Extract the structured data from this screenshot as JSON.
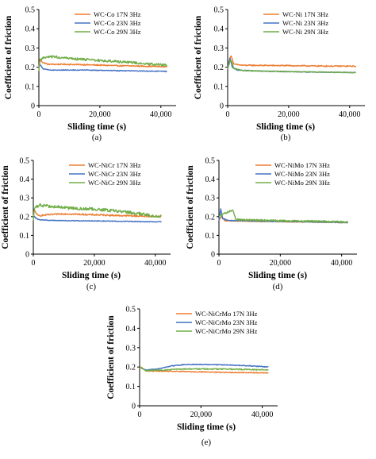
{
  "chart_data": [
    {
      "type": "line",
      "panel_label": "(a)",
      "xlabel": "Sliding time (s)",
      "ylabel": "Coefficient of friction",
      "xlim": [
        0,
        45000
      ],
      "ylim": [
        0,
        0.5
      ],
      "x_ticks": [
        0,
        20000,
        40000
      ],
      "x_tick_labels": [
        "0",
        "20,000",
        "40,000"
      ],
      "y_ticks": [
        0,
        0.1,
        0.2,
        0.3,
        0.4,
        0.5
      ],
      "y_tick_labels": [
        "0",
        "0.1",
        "0.2",
        "0.3",
        "0.4",
        "0.5"
      ],
      "legend_position": "top-right",
      "series": [
        {
          "name": "WC-Co 17N 3Hz",
          "color": "#ed7d31",
          "noise": 0.003,
          "points": [
            [
              0,
              0.19
            ],
            [
              300,
              0.24
            ],
            [
              1200,
              0.225
            ],
            [
              3000,
              0.215
            ],
            [
              8000,
              0.215
            ],
            [
              15000,
              0.213
            ],
            [
              25000,
              0.208
            ],
            [
              35000,
              0.205
            ],
            [
              42000,
              0.203
            ]
          ]
        },
        {
          "name": "WC-Co 23N 3Hz",
          "color": "#4472c4",
          "noise": 0.002,
          "points": [
            [
              0,
              0.2
            ],
            [
              300,
              0.215
            ],
            [
              1500,
              0.19
            ],
            [
              4000,
              0.185
            ],
            [
              15000,
              0.185
            ],
            [
              25000,
              0.182
            ],
            [
              35000,
              0.18
            ],
            [
              42000,
              0.178
            ]
          ]
        },
        {
          "name": "WC-Co 29N 3Hz",
          "color": "#70ad47",
          "noise": 0.006,
          "points": [
            [
              0,
              0.18
            ],
            [
              400,
              0.24
            ],
            [
              2000,
              0.25
            ],
            [
              5000,
              0.255
            ],
            [
              10000,
              0.245
            ],
            [
              20000,
              0.235
            ],
            [
              30000,
              0.225
            ],
            [
              38000,
              0.215
            ],
            [
              42000,
              0.21
            ]
          ]
        }
      ]
    },
    {
      "type": "line",
      "panel_label": "(b)",
      "xlabel": "Sliding time (s)",
      "ylabel": "Coefficient of friction",
      "xlim": [
        0,
        45000
      ],
      "ylim": [
        0,
        0.5
      ],
      "x_ticks": [
        0,
        20000,
        40000
      ],
      "x_tick_labels": [
        "0",
        "20,000",
        "40,000"
      ],
      "y_ticks": [
        0,
        0.1,
        0.2,
        0.3,
        0.4,
        0.5
      ],
      "y_tick_labels": [
        "0",
        "0.1",
        "0.2",
        "0.3",
        "0.4",
        "0.5"
      ],
      "legend_position": "top-right",
      "series": [
        {
          "name": "WC-Ni 17N 3Hz",
          "color": "#ed7d31",
          "noise": 0.003,
          "points": [
            [
              0,
              0.19
            ],
            [
              500,
              0.24
            ],
            [
              1200,
              0.26
            ],
            [
              2000,
              0.215
            ],
            [
              5000,
              0.21
            ],
            [
              20000,
              0.208
            ],
            [
              30000,
              0.206
            ],
            [
              42000,
              0.205
            ]
          ]
        },
        {
          "name": "WC-Ni 23N 3Hz",
          "color": "#4472c4",
          "noise": 0.002,
          "points": [
            [
              0,
              0.19
            ],
            [
              800,
              0.25
            ],
            [
              1500,
              0.2
            ],
            [
              3000,
              0.185
            ],
            [
              10000,
              0.18
            ],
            [
              25000,
              0.175
            ],
            [
              42000,
              0.172
            ]
          ]
        },
        {
          "name": "WC-Ni 29N 3Hz",
          "color": "#70ad47",
          "noise": 0.002,
          "points": [
            [
              0,
              0.19
            ],
            [
              1000,
              0.24
            ],
            [
              2000,
              0.195
            ],
            [
              5000,
              0.182
            ],
            [
              15000,
              0.178
            ],
            [
              30000,
              0.175
            ],
            [
              42000,
              0.172
            ]
          ]
        }
      ]
    },
    {
      "type": "line",
      "panel_label": "(c)",
      "xlabel": "Sliding time (s)",
      "ylabel": "Coefficient of friction",
      "xlim": [
        0,
        45000
      ],
      "ylim": [
        0,
        0.5
      ],
      "x_ticks": [
        0,
        20000,
        40000
      ],
      "x_tick_labels": [
        "0",
        "20,000",
        "40,000"
      ],
      "y_ticks": [
        0,
        0.1,
        0.2,
        0.3,
        0.4,
        0.5
      ],
      "y_tick_labels": [
        "0",
        "0.1",
        "0.2",
        "0.3",
        "0.4",
        "0.5"
      ],
      "legend_position": "top-right",
      "series": [
        {
          "name": "WC-NiCr 17N 3Hz",
          "color": "#ed7d31",
          "noise": 0.004,
          "points": [
            [
              0,
              0.19
            ],
            [
              300,
              0.235
            ],
            [
              1500,
              0.205
            ],
            [
              5000,
              0.21
            ],
            [
              10000,
              0.215
            ],
            [
              20000,
              0.21
            ],
            [
              30000,
              0.205
            ],
            [
              42000,
              0.2
            ]
          ]
        },
        {
          "name": "WC-NiCr 23N 3Hz",
          "color": "#4472c4",
          "noise": 0.002,
          "points": [
            [
              0,
              0.19
            ],
            [
              300,
              0.2
            ],
            [
              1500,
              0.185
            ],
            [
              5000,
              0.18
            ],
            [
              15000,
              0.178
            ],
            [
              30000,
              0.175
            ],
            [
              42000,
              0.172
            ]
          ]
        },
        {
          "name": "WC-NiCr 29N 3Hz",
          "color": "#70ad47",
          "noise": 0.008,
          "points": [
            [
              0,
              0.18
            ],
            [
              400,
              0.25
            ],
            [
              2000,
              0.26
            ],
            [
              6000,
              0.255
            ],
            [
              12000,
              0.245
            ],
            [
              20000,
              0.24
            ],
            [
              28000,
              0.23
            ],
            [
              35000,
              0.215
            ],
            [
              42000,
              0.2
            ]
          ]
        }
      ]
    },
    {
      "type": "line",
      "panel_label": "(d)",
      "xlabel": "Sliding time (s)",
      "ylabel": "Coefficient of friction",
      "xlim": [
        0,
        45000
      ],
      "ylim": [
        0,
        0.5
      ],
      "x_ticks": [
        0,
        20000,
        40000
      ],
      "x_tick_labels": [
        "0",
        "20,000",
        "40,000"
      ],
      "y_ticks": [
        0,
        0.1,
        0.2,
        0.3,
        0.4,
        0.5
      ],
      "y_tick_labels": [
        "0",
        "0.1",
        "0.2",
        "0.3",
        "0.4",
        "0.5"
      ],
      "legend_position": "top-right",
      "series": [
        {
          "name": "WC-NiMo 17N 3Hz",
          "color": "#ed7d31",
          "noise": 0.002,
          "points": [
            [
              0,
              0.18
            ],
            [
              800,
              0.2
            ],
            [
              2000,
              0.178
            ],
            [
              10000,
              0.175
            ],
            [
              25000,
              0.172
            ],
            [
              42000,
              0.168
            ]
          ]
        },
        {
          "name": "WC-NiMo 23N 3Hz",
          "color": "#4472c4",
          "noise": 0.002,
          "points": [
            [
              0,
              0.18
            ],
            [
              600,
              0.24
            ],
            [
              1200,
              0.19
            ],
            [
              3000,
              0.18
            ],
            [
              15000,
              0.175
            ],
            [
              30000,
              0.172
            ],
            [
              42000,
              0.168
            ]
          ]
        },
        {
          "name": "WC-NiMo 29N 3Hz",
          "color": "#70ad47",
          "noise": 0.005,
          "points": [
            [
              0,
              0.2
            ],
            [
              1500,
              0.215
            ],
            [
              3000,
              0.225
            ],
            [
              4500,
              0.235
            ],
            [
              5500,
              0.185
            ],
            [
              10000,
              0.182
            ],
            [
              20000,
              0.178
            ],
            [
              30000,
              0.175
            ],
            [
              42000,
              0.172
            ]
          ]
        }
      ]
    },
    {
      "type": "line",
      "panel_label": "(e)",
      "xlabel": "Sliding time (s)",
      "ylabel": "Coefficient of friction",
      "xlim": [
        0,
        45000
      ],
      "ylim": [
        0,
        0.5
      ],
      "x_ticks": [
        0,
        20000,
        40000
      ],
      "x_tick_labels": [
        "0",
        "20,000",
        "40,000"
      ],
      "y_ticks": [
        0,
        0.1,
        0.2,
        0.3,
        0.4,
        0.5
      ],
      "y_tick_labels": [
        "0",
        "0.1",
        "0.2",
        "0.3",
        "0.4",
        "0.5"
      ],
      "legend_position": "top-right",
      "series": [
        {
          "name": "WC-NiCrMo 17N 3Hz",
          "color": "#ed7d31",
          "noise": 0.002,
          "points": [
            [
              0,
              0.19
            ],
            [
              500,
              0.2
            ],
            [
              2000,
              0.18
            ],
            [
              10000,
              0.178
            ],
            [
              20000,
              0.175
            ],
            [
              30000,
              0.172
            ],
            [
              42000,
              0.17
            ]
          ]
        },
        {
          "name": "WC-NiCrMo 23N 3Hz",
          "color": "#4472c4",
          "noise": 0.002,
          "points": [
            [
              0,
              0.2
            ],
            [
              2000,
              0.185
            ],
            [
              6000,
              0.19
            ],
            [
              10000,
              0.205
            ],
            [
              15000,
              0.213
            ],
            [
              20000,
              0.213
            ],
            [
              25000,
              0.212
            ],
            [
              30000,
              0.21
            ],
            [
              35000,
              0.207
            ],
            [
              42000,
              0.2
            ]
          ]
        },
        {
          "name": "WC-NiCrMo 29N 3Hz",
          "color": "#70ad47",
          "noise": 0.003,
          "points": [
            [
              0,
              0.2
            ],
            [
              2000,
              0.182
            ],
            [
              8000,
              0.185
            ],
            [
              15000,
              0.19
            ],
            [
              25000,
              0.19
            ],
            [
              35000,
              0.188
            ],
            [
              42000,
              0.185
            ]
          ]
        }
      ]
    }
  ]
}
